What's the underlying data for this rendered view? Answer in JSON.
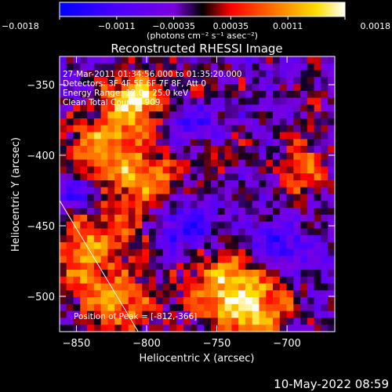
{
  "chart_data": {
    "type": "heatmap",
    "title": "Reconstructed RHESSI Image",
    "xlabel": "Heliocentric X (arcsec)",
    "ylabel": "Heliocentric Y (arcsec)",
    "xlim": [
      -862,
      -666
    ],
    "ylim": [
      -525,
      -330
    ],
    "x_ticks": [
      -850,
      -800,
      -750,
      -700
    ],
    "y_ticks": [
      -350,
      -400,
      -450,
      -500
    ],
    "colorbar": {
      "range": [
        -0.0018,
        0.0018
      ],
      "ticks": [
        "-0.0018",
        "-0.0011",
        "-0.00035",
        "0.00035",
        "0.0011",
        "0.0018"
      ],
      "units": "(photons cm⁻² s⁻¹ asec⁻²)",
      "colors": [
        "#0000ff",
        "#7a00e0",
        "#000000",
        "#ff0000",
        "#ff9900",
        "#ffffff"
      ]
    },
    "annotations": [
      "27-Mar-2011 01:34:56.000 to 01:35:20.000",
      "Detectors: 3F 4F 5F 6F 7F 8F, Att 0",
      "Energy Range: 12.0 - 25.0 keV",
      "Clean     Total Counts: 909.",
      "Position of Peak = [-812,-366]"
    ],
    "limb_line": [
      [
        -862,
        -432
      ],
      [
        -806,
        -525
      ]
    ],
    "emission_regions": [
      {
        "x": -808,
        "y": -360,
        "intensity": 0.0018,
        "sx": 16,
        "sy": 14
      },
      {
        "x": -830,
        "y": -395,
        "intensity": 0.0014,
        "sx": 22,
        "sy": 18
      },
      {
        "x": -800,
        "y": -420,
        "intensity": 0.0011,
        "sx": 20,
        "sy": 16
      },
      {
        "x": -845,
        "y": -470,
        "intensity": 0.0012,
        "sx": 14,
        "sy": 22
      },
      {
        "x": -815,
        "y": -455,
        "intensity": 0.0009,
        "sx": 18,
        "sy": 14
      },
      {
        "x": -818,
        "y": -505,
        "intensity": 0.0013,
        "sx": 20,
        "sy": 16
      },
      {
        "x": -740,
        "y": -490,
        "intensity": 0.0016,
        "sx": 22,
        "sy": 20
      },
      {
        "x": -722,
        "y": -512,
        "intensity": 0.0013,
        "sx": 20,
        "sy": 12
      },
      {
        "x": -688,
        "y": -410,
        "intensity": 0.0012,
        "sx": 12,
        "sy": 16
      },
      {
        "x": -745,
        "y": -398,
        "intensity": 0.0006,
        "sx": 18,
        "sy": 10
      },
      {
        "x": -760,
        "y": -350,
        "intensity": 0.0005,
        "sx": 20,
        "sy": 10
      },
      {
        "x": -682,
        "y": -360,
        "intensity": 0.0004,
        "sx": 10,
        "sy": 14
      }
    ],
    "negative_regions": [
      {
        "x": -775,
        "y": -452,
        "intensity": -0.0012,
        "sx": 16,
        "sy": 12
      },
      {
        "x": -850,
        "y": -425,
        "intensity": -0.001,
        "sx": 12,
        "sy": 10
      },
      {
        "x": -710,
        "y": -465,
        "intensity": -0.0011,
        "sx": 16,
        "sy": 10
      },
      {
        "x": -770,
        "y": -375,
        "intensity": -0.0008,
        "sx": 14,
        "sy": 12
      }
    ]
  },
  "footer": {
    "timestamp": "10-May-2022 08:59"
  }
}
